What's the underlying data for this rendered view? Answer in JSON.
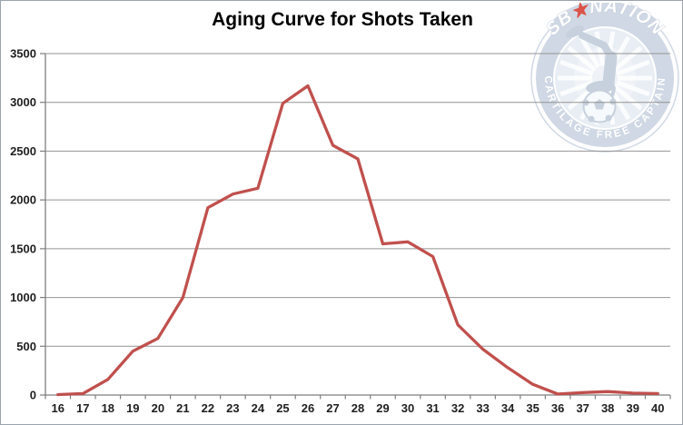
{
  "frame": {
    "background": "#ffffff",
    "border_color": "#9aa3ae"
  },
  "chart_data": {
    "type": "line",
    "title": "Aging Curve for Shots Taken",
    "xlabel": "",
    "ylabel": "",
    "x": [
      16,
      17,
      18,
      19,
      20,
      21,
      22,
      23,
      24,
      25,
      26,
      27,
      28,
      29,
      30,
      31,
      32,
      33,
      34,
      35,
      36,
      37,
      38,
      39,
      40
    ],
    "series": [
      {
        "color": "#c0504d",
        "values": [
          5,
          15,
          160,
          450,
          580,
          1000,
          1920,
          2060,
          2120,
          2990,
          3170,
          2560,
          2420,
          1550,
          1570,
          1420,
          720,
          470,
          280,
          110,
          10,
          25,
          35,
          20,
          15
        ]
      }
    ],
    "ylim": [
      0,
      3500
    ],
    "yticks": [
      0,
      500,
      1000,
      1500,
      2000,
      2500,
      3000,
      3500
    ],
    "grid": "horizontal",
    "legend": "none"
  },
  "axis": {
    "tick_label_color": "#1f1f1f",
    "grid_color": "#949494",
    "axis_color": "#7f7f7f"
  },
  "watermark": {
    "brand_left": "SB",
    "star": "★",
    "brand_right": "NATION",
    "ring_text": "CARTILAGE FREE CAPTAIN",
    "band_color": "#ccd5e2",
    "inner_color": "#e7edf4",
    "figure_color": "#c3cedb",
    "star_color": "#d8453a",
    "text_color": "#ffffff"
  }
}
